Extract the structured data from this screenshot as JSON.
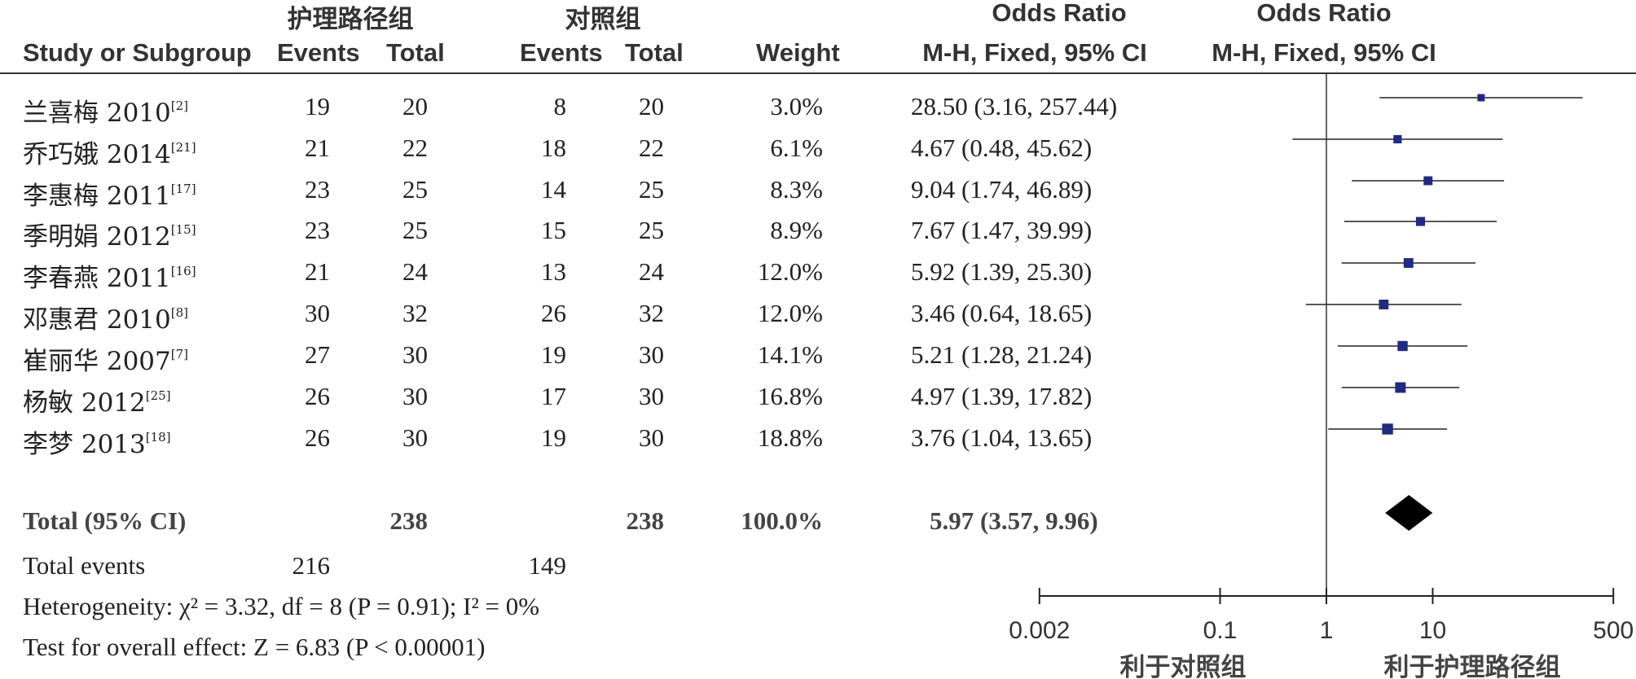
{
  "header": {
    "group1": "护理路径组",
    "group2": "对照组",
    "or1": "Odds Ratio",
    "or2": "Odds Ratio",
    "study": "Study or Subgroup",
    "events1": "Events",
    "total1": "Total",
    "events2": "Events",
    "total2": "Total",
    "weight": "Weight",
    "method1": "M-H, Fixed, 95% CI",
    "method2": "M-H, Fixed, 95% CI"
  },
  "studies": [
    {
      "name": "兰喜梅 2010",
      "ref": "[2]",
      "e1": "19",
      "t1": "20",
      "e2": "8",
      "t2": "20",
      "weight": "3.0%",
      "ci": "28.50 (3.16, 257.44)"
    },
    {
      "name": "乔巧娥 2014",
      "ref": "[21]",
      "e1": "21",
      "t1": "22",
      "e2": "18",
      "t2": "22",
      "weight": "6.1%",
      "ci": "4.67 (0.48, 45.62)"
    },
    {
      "name": "李惠梅 2011",
      "ref": "[17]",
      "e1": "23",
      "t1": "25",
      "e2": "14",
      "t2": "25",
      "weight": "8.3%",
      "ci": "9.04 (1.74, 46.89)"
    },
    {
      "name": "季明娟 2012",
      "ref": "[15]",
      "e1": "23",
      "t1": "25",
      "e2": "15",
      "t2": "25",
      "weight": "8.9%",
      "ci": "7.67 (1.47, 39.99)"
    },
    {
      "name": "李春燕 2011",
      "ref": "[16]",
      "e1": "21",
      "t1": "24",
      "e2": "13",
      "t2": "24",
      "weight": "12.0%",
      "ci": "5.92 (1.39, 25.30)"
    },
    {
      "name": "邓惠君 2010",
      "ref": "[8]",
      "e1": "30",
      "t1": "32",
      "e2": "26",
      "t2": "32",
      "weight": "12.0%",
      "ci": "3.46 (0.64, 18.65)"
    },
    {
      "name": "崔丽华 2007",
      "ref": "[7]",
      "e1": "27",
      "t1": "30",
      "e2": "19",
      "t2": "30",
      "weight": "14.1%",
      "ci": "5.21 (1.28, 21.24)"
    },
    {
      "name": "杨敏 2012",
      "ref": "[25]",
      "e1": "26",
      "t1": "30",
      "e2": "17",
      "t2": "30",
      "weight": "16.8%",
      "ci": "4.97 (1.39, 17.82)"
    },
    {
      "name": "李梦 2013",
      "ref": "[18]",
      "e1": "26",
      "t1": "30",
      "e2": "19",
      "t2": "30",
      "weight": "18.8%",
      "ci": "3.76 (1.04, 13.65)"
    }
  ],
  "total": {
    "label": "Total (95% CI)",
    "t1": "238",
    "t2": "238",
    "weight": "100.0%",
    "ci": "5.97 (3.57, 9.96)"
  },
  "total_events": {
    "label": "Total events",
    "e1": "216",
    "e2": "149"
  },
  "footer": {
    "heterogeneity": "Heterogeneity: χ² = 3.32, df = 8 (P = 0.91); I² = 0%",
    "overall": "Test for overall effect: Z = 6.83 (P < 0.00001)"
  },
  "chart_data": {
    "type": "forest",
    "xscale": "log",
    "xlim": [
      0.002,
      500
    ],
    "xticks": [
      "0.002",
      "0.1",
      "1",
      "10",
      "500"
    ],
    "xtick_values": [
      0.002,
      0.1,
      1,
      10,
      500
    ],
    "favours_left": "利于对照组",
    "favours_right": "利于护理路径组",
    "colors": {
      "marker": "#1f2a80",
      "diamond": "#000000",
      "line": "#222222"
    },
    "points": [
      {
        "or": 28.5,
        "lo": 3.16,
        "hi": 257.44,
        "weight": 3.0
      },
      {
        "or": 4.67,
        "lo": 0.48,
        "hi": 45.62,
        "weight": 6.1
      },
      {
        "or": 9.04,
        "lo": 1.74,
        "hi": 46.89,
        "weight": 8.3
      },
      {
        "or": 7.67,
        "lo": 1.47,
        "hi": 39.99,
        "weight": 8.9
      },
      {
        "or": 5.92,
        "lo": 1.39,
        "hi": 25.3,
        "weight": 12.0
      },
      {
        "or": 3.46,
        "lo": 0.64,
        "hi": 18.65,
        "weight": 12.0
      },
      {
        "or": 5.21,
        "lo": 1.28,
        "hi": 21.24,
        "weight": 14.1
      },
      {
        "or": 4.97,
        "lo": 1.39,
        "hi": 17.82,
        "weight": 16.8
      },
      {
        "or": 3.76,
        "lo": 1.04,
        "hi": 13.65,
        "weight": 18.8
      }
    ],
    "summary": {
      "or": 5.97,
      "lo": 3.57,
      "hi": 9.96
    }
  }
}
